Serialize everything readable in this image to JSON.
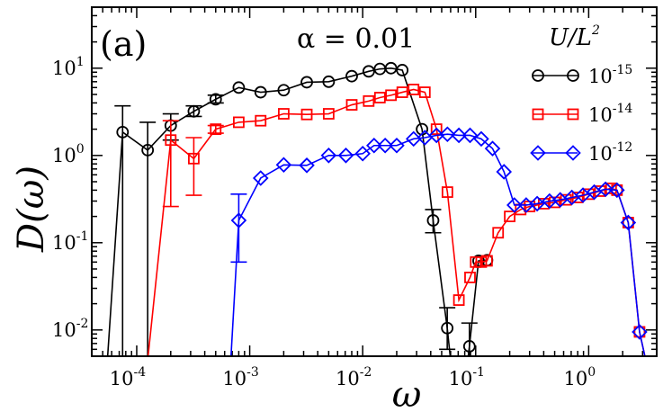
{
  "chart_data": {
    "type": "line",
    "panel_label": "(a)",
    "annotation": "α = 0.01",
    "xlabel": "ω",
    "ylabel": "D(ω)",
    "x_scale": "log",
    "y_scale": "log",
    "xlim": [
      4e-05,
      4
    ],
    "ylim": [
      0.005,
      50
    ],
    "x_ticks": [
      {
        "value": 0.0001,
        "base": "10",
        "exp": "-4"
      },
      {
        "value": 0.001,
        "base": "10",
        "exp": "-3"
      },
      {
        "value": 0.01,
        "base": "10",
        "exp": "-2"
      },
      {
        "value": 0.1,
        "base": "10",
        "exp": "-1"
      },
      {
        "value": 1,
        "base": "10",
        "exp": "0"
      }
    ],
    "y_ticks": [
      {
        "value": 0.01,
        "base": "10",
        "exp": "-2"
      },
      {
        "value": 0.1,
        "base": "10",
        "exp": "-1"
      },
      {
        "value": 1,
        "base": "10",
        "exp": "0"
      },
      {
        "value": 10,
        "base": "10",
        "exp": "1"
      }
    ],
    "legend_title": "U/L",
    "legend_title_exp": "2",
    "legend_position": "top-right",
    "series": [
      {
        "name_base": "10",
        "name_exp": "-15",
        "color": "#000000",
        "marker": "circle",
        "points": [
          {
            "x": 5.5e-05,
            "y": 0.0045
          },
          {
            "x": 7.5e-05,
            "y": 1.85,
            "err_lo": 0.001,
            "err_hi": 3.7
          },
          {
            "x": 0.000125,
            "y": 1.15,
            "err_lo": 0.001,
            "err_hi": 2.4
          },
          {
            "x": 0.0002,
            "y": 2.2,
            "err_lo": 1.5,
            "err_hi": 3.0
          },
          {
            "x": 0.00032,
            "y": 3.2,
            "err_lo": 2.8,
            "err_hi": 3.7
          },
          {
            "x": 0.0005,
            "y": 4.4,
            "err_lo": 4.0,
            "err_hi": 4.9
          },
          {
            "x": 0.0008,
            "y": 6.0
          },
          {
            "x": 0.00125,
            "y": 5.3
          },
          {
            "x": 0.002,
            "y": 5.6
          },
          {
            "x": 0.0032,
            "y": 6.9
          },
          {
            "x": 0.005,
            "y": 7.0
          },
          {
            "x": 0.008,
            "y": 8.1
          },
          {
            "x": 0.0113,
            "y": 9.2
          },
          {
            "x": 0.0142,
            "y": 9.8
          },
          {
            "x": 0.0178,
            "y": 10.0
          },
          {
            "x": 0.0224,
            "y": 9.5
          },
          {
            "x": 0.0335,
            "y": 2.0
          },
          {
            "x": 0.042,
            "y": 0.18,
            "err_lo": 0.13,
            "err_hi": 0.24
          },
          {
            "x": 0.056,
            "y": 0.0105,
            "err_lo": 0.006,
            "err_hi": 0.018
          },
          {
            "x": 0.06,
            "y": 0.0045
          },
          {
            "x": 0.085,
            "y": 0.0045
          },
          {
            "x": 0.088,
            "y": 0.0065,
            "err_lo": 0.004,
            "err_hi": 0.012
          },
          {
            "x": 0.106,
            "y": 0.062
          },
          {
            "x": 0.126,
            "y": 0.063
          }
        ]
      },
      {
        "name_base": "10",
        "name_exp": "-14",
        "color": "#ff0000",
        "marker": "square",
        "points": [
          {
            "x": 0.000125,
            "y": 0.0045
          },
          {
            "x": 0.0002,
            "y": 1.5,
            "err_lo": 0.26,
            "err_hi": 2.5
          },
          {
            "x": 0.00032,
            "y": 0.92,
            "err_lo": 0.35,
            "err_hi": 1.6
          },
          {
            "x": 0.0005,
            "y": 2.0,
            "err_lo": 1.8,
            "err_hi": 2.2
          },
          {
            "x": 0.0008,
            "y": 2.4
          },
          {
            "x": 0.00125,
            "y": 2.5
          },
          {
            "x": 0.002,
            "y": 3.0
          },
          {
            "x": 0.0032,
            "y": 2.95
          },
          {
            "x": 0.005,
            "y": 3.0
          },
          {
            "x": 0.008,
            "y": 3.8
          },
          {
            "x": 0.0113,
            "y": 4.2
          },
          {
            "x": 0.0142,
            "y": 4.6
          },
          {
            "x": 0.0178,
            "y": 4.9
          },
          {
            "x": 0.0224,
            "y": 5.3
          },
          {
            "x": 0.0282,
            "y": 5.7
          },
          {
            "x": 0.0355,
            "y": 5.3
          },
          {
            "x": 0.045,
            "y": 2.0
          },
          {
            "x": 0.0562,
            "y": 0.38
          },
          {
            "x": 0.071,
            "y": 0.022
          },
          {
            "x": 0.0891,
            "y": 0.04
          },
          {
            "x": 0.1,
            "y": 0.06
          },
          {
            "x": 0.112,
            "y": 0.06
          },
          {
            "x": 0.126,
            "y": 0.062
          },
          {
            "x": 0.158,
            "y": 0.13
          },
          {
            "x": 0.2,
            "y": 0.2
          },
          {
            "x": 0.25,
            "y": 0.24
          },
          {
            "x": 0.3,
            "y": 0.26
          },
          {
            "x": 0.4,
            "y": 0.28
          },
          {
            "x": 0.5,
            "y": 0.29
          },
          {
            "x": 0.63,
            "y": 0.31
          },
          {
            "x": 0.8,
            "y": 0.33
          },
          {
            "x": 1.0,
            "y": 0.36
          },
          {
            "x": 1.26,
            "y": 0.39
          },
          {
            "x": 1.58,
            "y": 0.42
          },
          {
            "x": 1.78,
            "y": 0.4
          },
          {
            "x": 2.24,
            "y": 0.17
          },
          {
            "x": 2.82,
            "y": 0.0095
          },
          {
            "x": 3.2,
            "y": 0.0045
          }
        ]
      },
      {
        "name_base": "10",
        "name_exp": "-12",
        "color": "#0000ff",
        "marker": "diamond",
        "points": [
          {
            "x": 0.00068,
            "y": 0.0045
          },
          {
            "x": 0.0008,
            "y": 0.18,
            "err_lo": 0.06,
            "err_hi": 0.36
          },
          {
            "x": 0.00125,
            "y": 0.55
          },
          {
            "x": 0.002,
            "y": 0.78
          },
          {
            "x": 0.0032,
            "y": 0.77
          },
          {
            "x": 0.005,
            "y": 1.0
          },
          {
            "x": 0.0071,
            "y": 1.0
          },
          {
            "x": 0.01,
            "y": 1.05
          },
          {
            "x": 0.0126,
            "y": 1.3
          },
          {
            "x": 0.0158,
            "y": 1.3
          },
          {
            "x": 0.02,
            "y": 1.3
          },
          {
            "x": 0.0282,
            "y": 1.55
          },
          {
            "x": 0.0355,
            "y": 1.6
          },
          {
            "x": 0.045,
            "y": 1.7
          },
          {
            "x": 0.0562,
            "y": 1.75
          },
          {
            "x": 0.071,
            "y": 1.7
          },
          {
            "x": 0.0891,
            "y": 1.7
          },
          {
            "x": 0.112,
            "y": 1.55
          },
          {
            "x": 0.141,
            "y": 1.2
          },
          {
            "x": 0.178,
            "y": 0.65
          },
          {
            "x": 0.22,
            "y": 0.27
          },
          {
            "x": 0.28,
            "y": 0.27
          },
          {
            "x": 0.35,
            "y": 0.28
          },
          {
            "x": 0.45,
            "y": 0.3
          },
          {
            "x": 0.56,
            "y": 0.31
          },
          {
            "x": 0.71,
            "y": 0.33
          },
          {
            "x": 0.89,
            "y": 0.35
          },
          {
            "x": 1.12,
            "y": 0.38
          },
          {
            "x": 1.41,
            "y": 0.41
          },
          {
            "x": 1.78,
            "y": 0.4
          },
          {
            "x": 2.24,
            "y": 0.17
          },
          {
            "x": 2.82,
            "y": 0.0095
          },
          {
            "x": 3.2,
            "y": 0.0045
          }
        ]
      }
    ]
  }
}
